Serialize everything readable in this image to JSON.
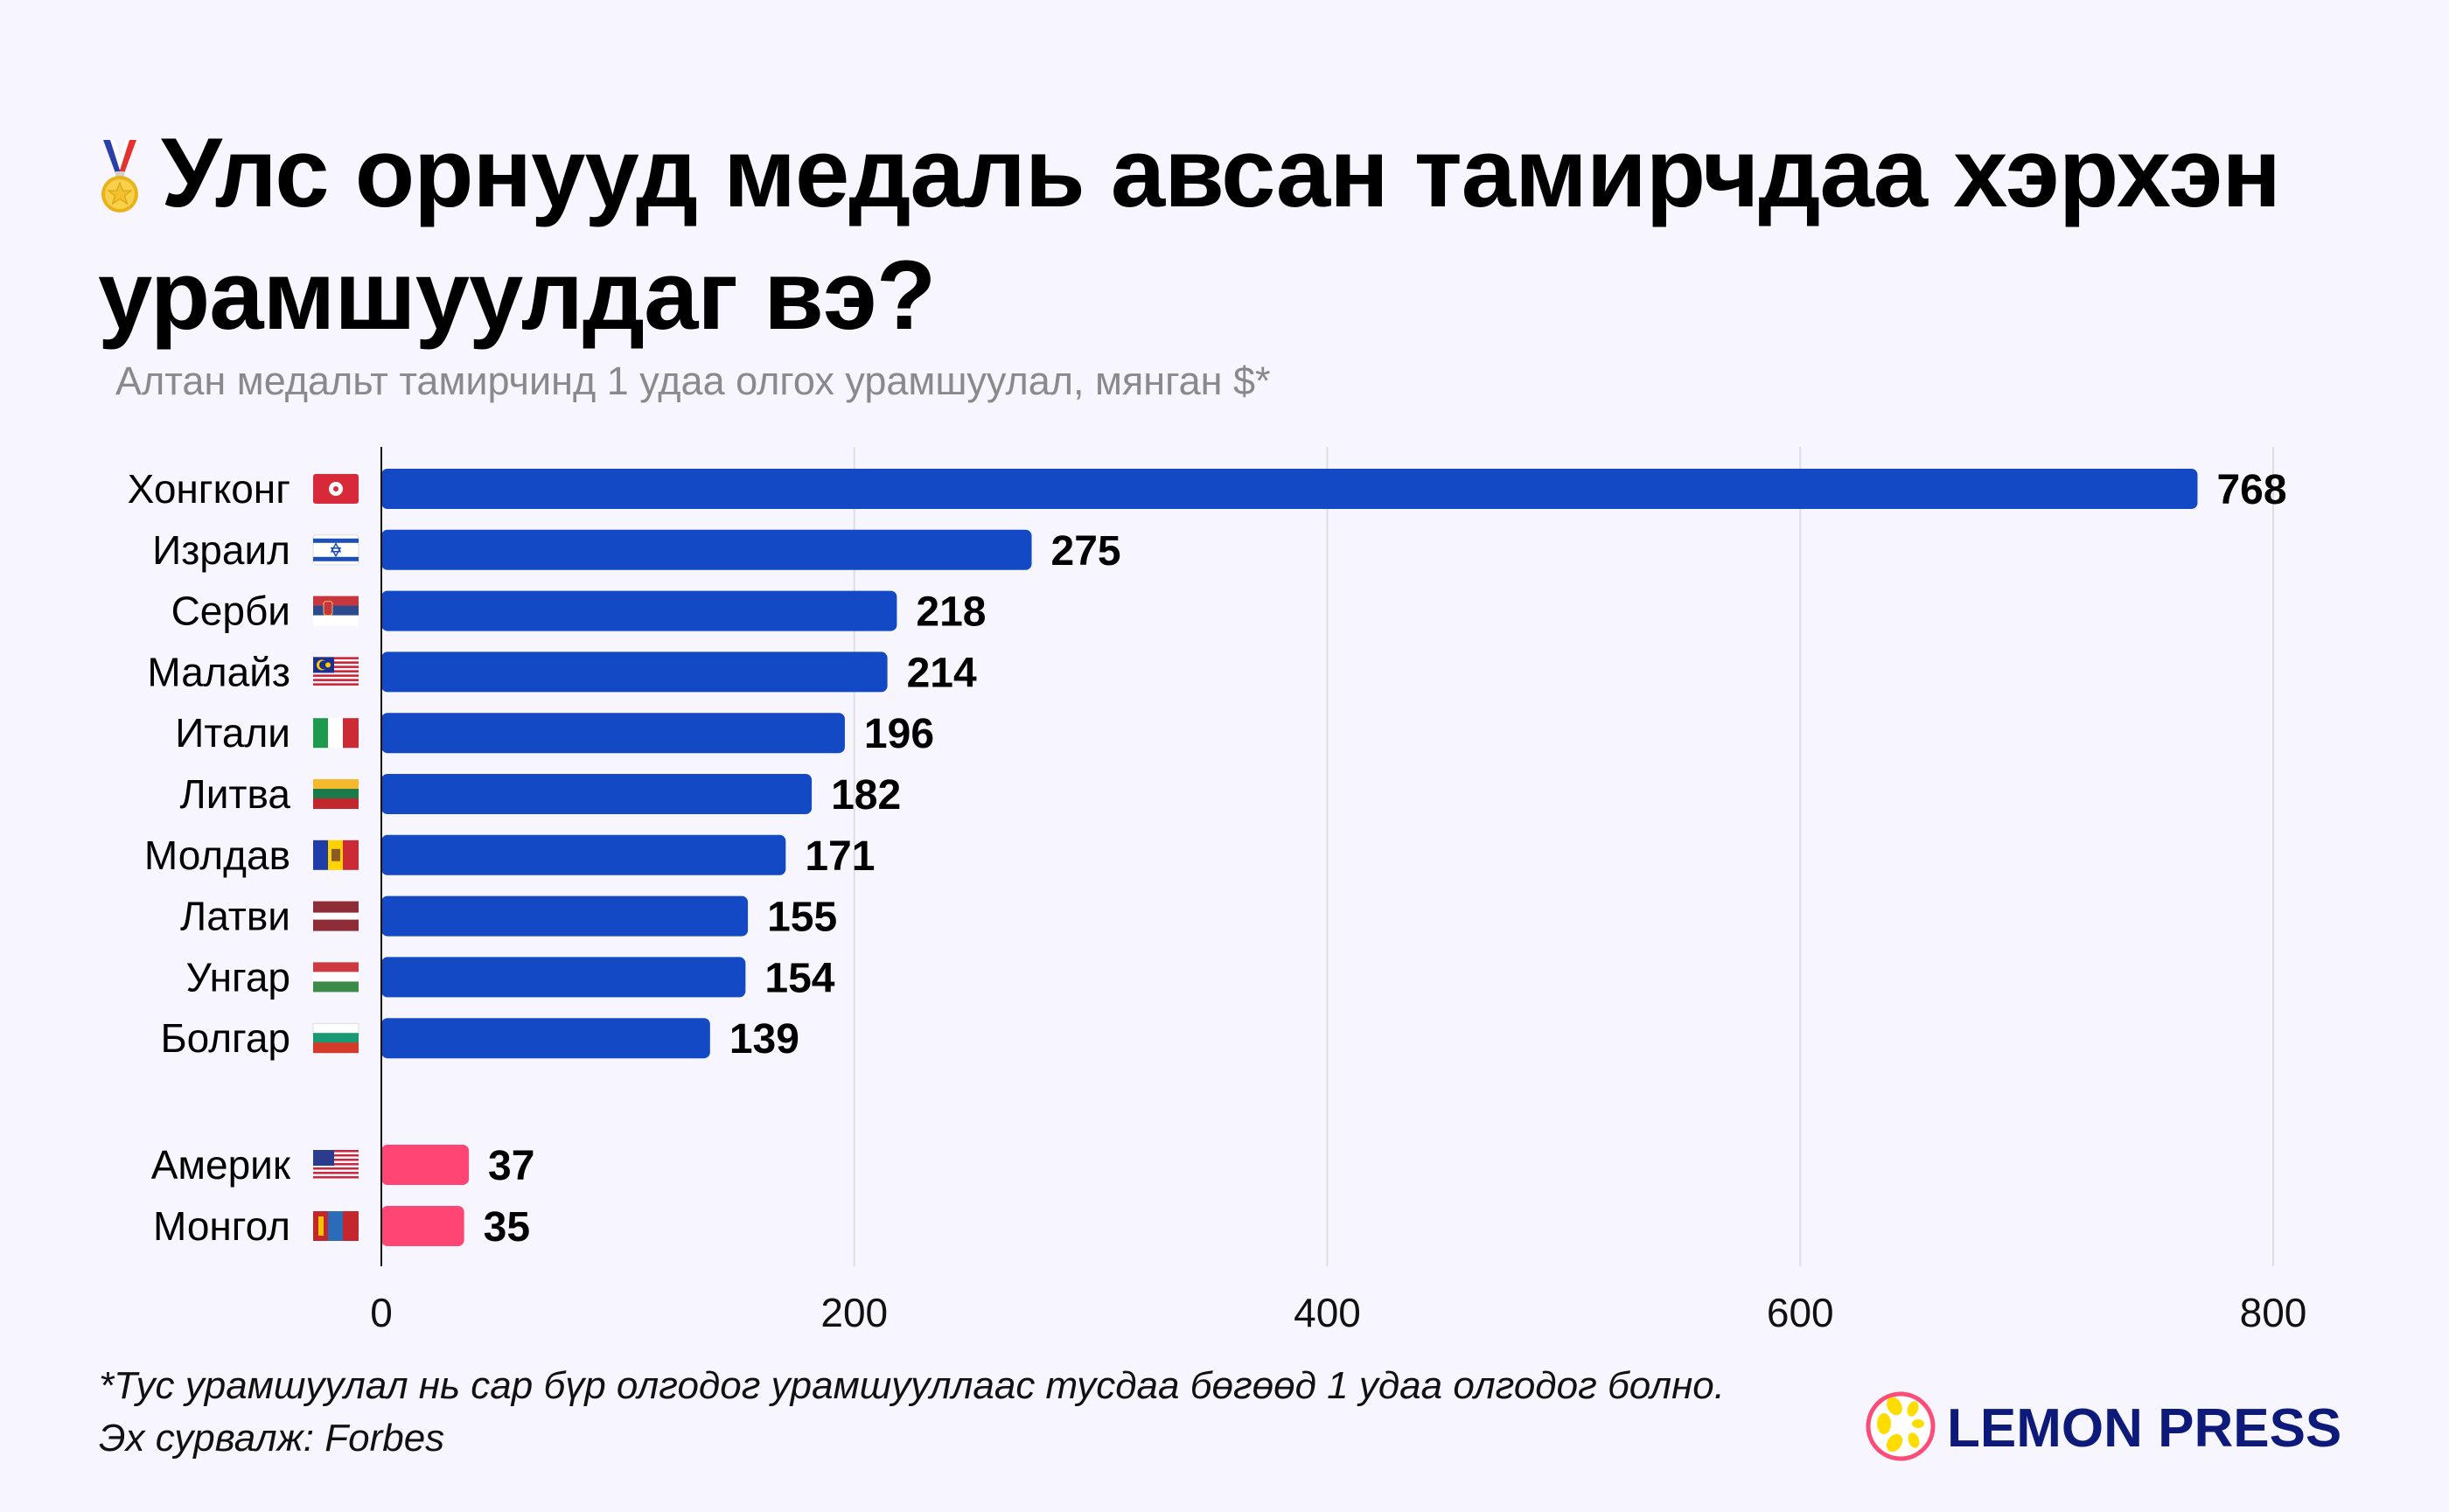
{
  "header": {
    "title_line1": "Улс орнууд медаль авсан тамирчдаа хэрхэн",
    "title_line2": "урамшуулдаг вэ?",
    "title_icon": "medal-icon",
    "subtitle": "Алтан медальт тамирчинд 1 удаа олгох урамшуулал, мянган $*"
  },
  "colors": {
    "background": "#f7f6fe",
    "primary_bar": "#1349c4",
    "highlight_bar": "#ff4573",
    "gridline": "#dddde4",
    "axis": "#111111",
    "subtitle": "#8a8a8c",
    "logo_text": "#0e1a7a"
  },
  "chart_data": {
    "type": "bar",
    "orientation": "horizontal",
    "title": "Улс орнууд медаль авсан тамирчдаа хэрхэн урамшуулдаг вэ?",
    "subtitle": "Алтан медальт тамирчинд 1 удаа олгох урамшуулал, мянган $*",
    "xlabel": "",
    "ylabel": "",
    "xlim": [
      0,
      800
    ],
    "xticks": [
      "0",
      "200",
      "400",
      "600",
      "800"
    ],
    "xtick_values": [
      0,
      200,
      400,
      600,
      800
    ],
    "grid": true,
    "legend": "none",
    "categories": [
      "Хонгконг",
      "Израил",
      "Серби",
      "Малайз",
      "Итали",
      "Литва",
      "Молдав",
      "Латви",
      "Унгар",
      "Болгар",
      "Америк",
      "Монгол"
    ],
    "flags": [
      "flag-hong-kong",
      "flag-israel",
      "flag-serbia",
      "flag-malaysia",
      "flag-italy",
      "flag-lithuania",
      "flag-moldova",
      "flag-latvia",
      "flag-hungary",
      "flag-bulgaria",
      "flag-usa",
      "flag-mongolia"
    ],
    "values": [
      768,
      275,
      218,
      214,
      196,
      182,
      171,
      155,
      154,
      139,
      37,
      35
    ],
    "groups": [
      "main",
      "main",
      "main",
      "main",
      "main",
      "main",
      "main",
      "main",
      "main",
      "main",
      "highlight",
      "highlight"
    ]
  },
  "footer": {
    "note": "*Тус урамшуулал нь сар бүр олгодог урамшууллаас тусдаа бөгөөд 1 удаа олгодог болно.",
    "source": "Эх сурвалж:  Forbes"
  },
  "logo": {
    "text": "LEMON PRESS",
    "icon": "lemon-slice-icon"
  }
}
